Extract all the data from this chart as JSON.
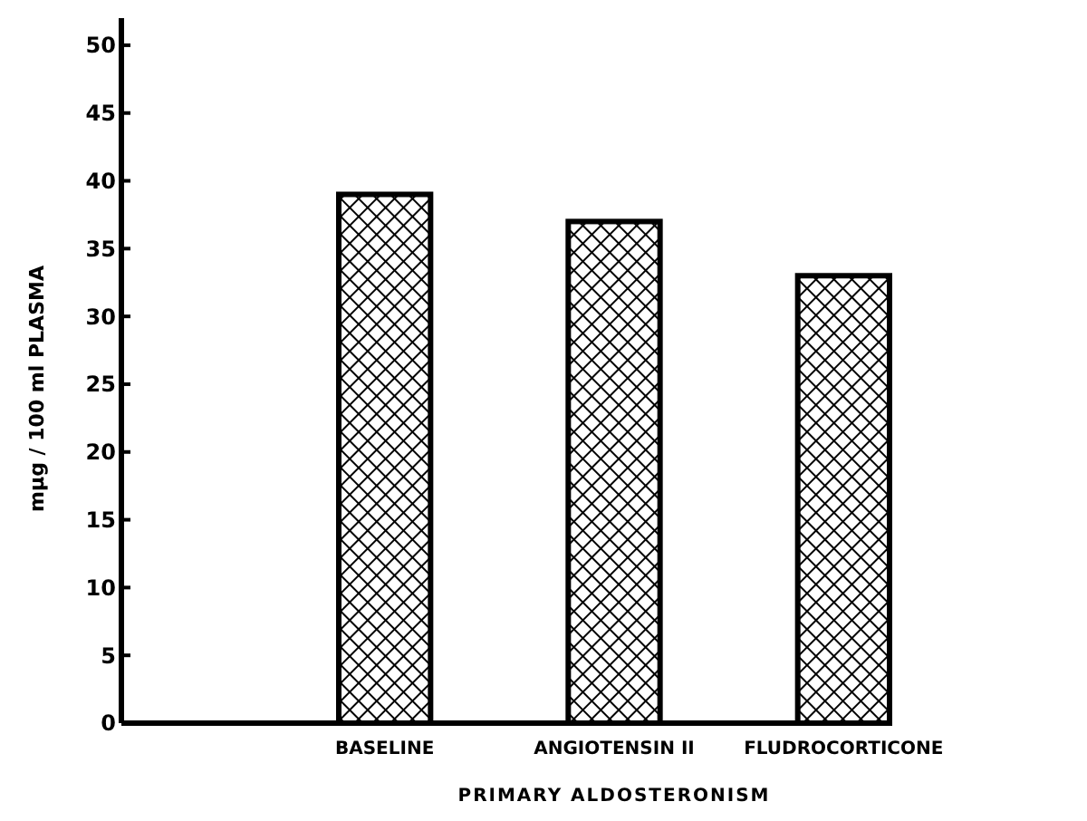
{
  "chart_data": {
    "type": "bar",
    "xlabel": "PRIMARY ALDOSTERONISM",
    "ylabel": "mμg / 100 ml PLASMA",
    "categories": [
      "BASELINE",
      "ANGIOTENSIN II",
      "FLUDROCORTICONE"
    ],
    "values": [
      39,
      37,
      33
    ],
    "color": "#000000",
    "ylim": [
      0,
      52
    ],
    "yticks": [
      0,
      5,
      10,
      15,
      20,
      25,
      30,
      35,
      40,
      45,
      50
    ],
    "grid": false
  }
}
